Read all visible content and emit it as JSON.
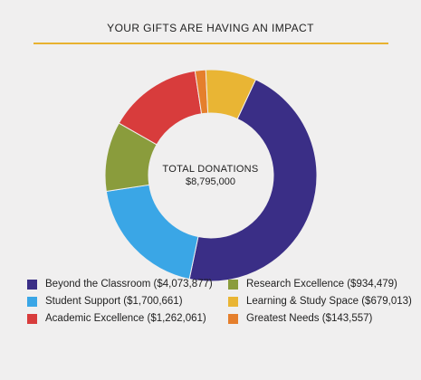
{
  "header": {
    "title": "YOUR GIFTS ARE HAVING AN IMPACT",
    "rule_color": "#e8b230"
  },
  "center": {
    "label": "TOTAL DONATIONS",
    "value": "$8,795,000"
  },
  "chart_data": {
    "type": "pie",
    "title": "YOUR GIFTS ARE HAVING AN IMPACT",
    "categories": [
      "Beyond the Classroom",
      "Student Support",
      "Research Excellence",
      "Academic Excellence",
      "Greatest Needs",
      "Learning & Study Space"
    ],
    "values": [
      4073877,
      1700661,
      934479,
      1262061,
      143557,
      679013
    ],
    "colors": [
      "#3a2e86",
      "#3aa6e6",
      "#8a9c3c",
      "#d83c3c",
      "#e57f2c",
      "#e9b534"
    ],
    "legend_position": "bottom"
  },
  "legend": [
    {
      "label": "Beyond the Classroom ($4,073,877)",
      "color": "#3a2e86"
    },
    {
      "label": "Research Excellence ($934,479)",
      "color": "#8a9c3c"
    },
    {
      "label": "Student Support ($1,700,661)",
      "color": "#3aa6e6"
    },
    {
      "label": "Learning & Study Space ($679,013)",
      "color": "#e9b534"
    },
    {
      "label": "Academic Excellence ($1,262,061)",
      "color": "#d83c3c"
    },
    {
      "label": "Greatest Needs ($143,557)",
      "color": "#e57f2c"
    }
  ]
}
